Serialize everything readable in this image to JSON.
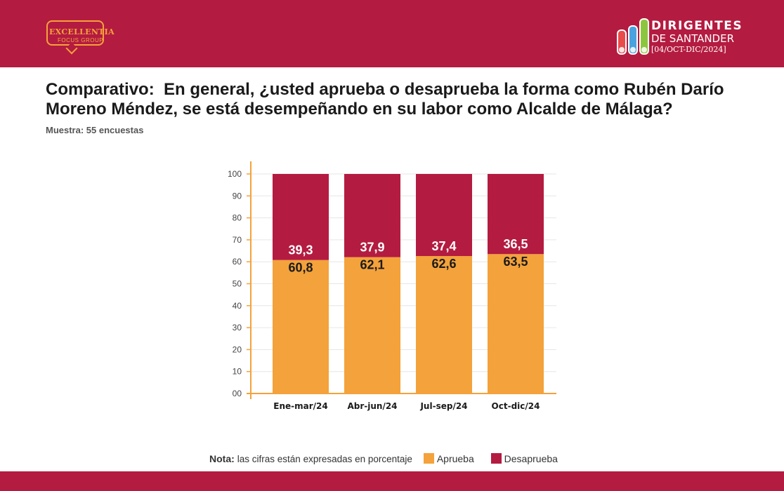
{
  "header": {
    "logo_left_line1": "EXCELLENTIA",
    "logo_left_line2": "FOCUS GROUP",
    "logo_right_line1": "DIRIGENTES",
    "logo_right_line2": "DE SANTANDER",
    "logo_right_line3": "[04/OCT-DIC/2024]"
  },
  "colors": {
    "brand_red": "#b41b40",
    "aprueba": "#f4a23b",
    "desaprueba": "#b41b40",
    "logo_pills": [
      "#e94b4b",
      "#4aa3df",
      "#8cc63f"
    ]
  },
  "title": "Comparativo:  En general, ¿usted aprueba o desaprueba la forma como Rubén Darío\nMoreno Méndez, se está desempeñando en su labor como Alcalde de Málaga?",
  "subtitle": "Muestra: 55 encuestas",
  "chart_data": {
    "type": "bar",
    "stacked": true,
    "categories": [
      "Ene-mar/24",
      "Abr-jun/24",
      "Jul-sep/24",
      "Oct-dic/24"
    ],
    "series": [
      {
        "name": "Aprueba",
        "values": [
          60.8,
          62.1,
          62.6,
          63.5
        ],
        "labels": [
          "60,8",
          "62,1",
          "62,6",
          "63,5"
        ],
        "color": "#f4a23b"
      },
      {
        "name": "Desaprueba",
        "values": [
          39.3,
          37.9,
          37.4,
          36.5
        ],
        "labels": [
          "39,3",
          "37,9",
          "37,4",
          "36,5"
        ],
        "color": "#b41b40"
      }
    ],
    "ylim": [
      0,
      100
    ],
    "yticks": [
      "00",
      "10",
      "20",
      "30",
      "40",
      "50",
      "60",
      "70",
      "80",
      "90",
      "100"
    ],
    "grid": true
  },
  "legend": {
    "nota_bold": "Nota:",
    "nota_text": "las cifras están expresadas en porcentaje",
    "aprueba": "Aprueba",
    "desaprueba": "Desaprueba"
  }
}
